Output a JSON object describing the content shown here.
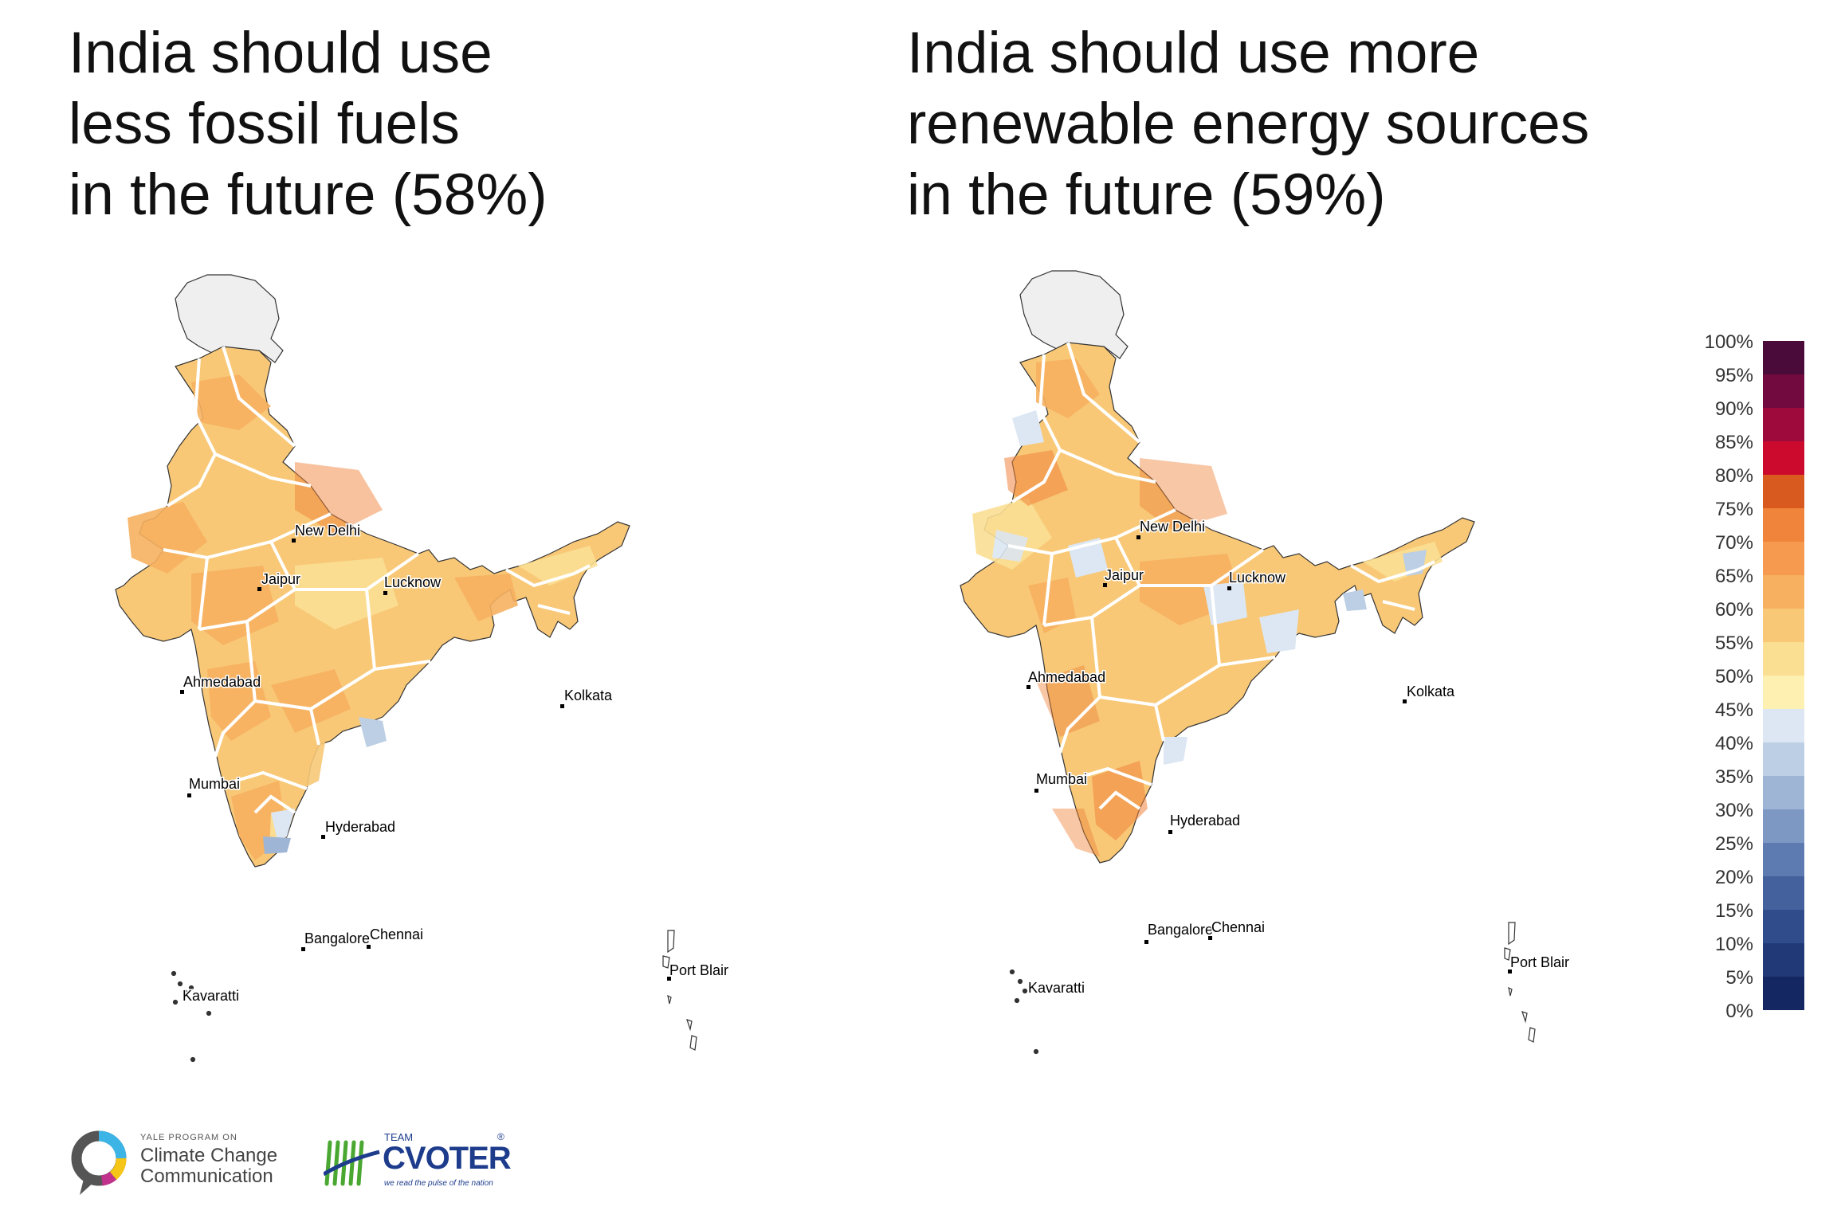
{
  "titles": {
    "left": [
      "India should use",
      "less fossil fuels",
      "in the future (58%)"
    ],
    "right": [
      "India should use more",
      "renewable energy sources",
      "in the future (59%)"
    ]
  },
  "maps": {
    "left": {
      "cities": {
        "new_delhi": "New Delhi",
        "jaipur": "Jaipur",
        "lucknow": "Lucknow",
        "ahmedabad": "Ahmedabad",
        "kolkata": "Kolkata",
        "mumbai": "Mumbai",
        "hyderabad": "Hyderabad",
        "bangalore": "Bangalore",
        "chennai": "Chennai",
        "kavaratti": "Kavaratti",
        "port_blair": "Port Blair"
      }
    },
    "right": {
      "cities": {
        "new_delhi": "New Delhi",
        "jaipur": "Jaipur",
        "lucknow": "Lucknow",
        "ahmedabad": "Ahmedabad",
        "kolkata": "Kolkata",
        "mumbai": "Mumbai",
        "hyderabad": "Hyderabad",
        "bangalore": "Bangalore",
        "chennai": "Chennai",
        "kavaratti": "Kavaratti",
        "port_blair": "Port Blair"
      }
    }
  },
  "legend": {
    "labels": [
      "100%",
      "95%",
      "90%",
      "85%",
      "80%",
      "75%",
      "70%",
      "65%",
      "60%",
      "55%",
      "50%",
      "45%",
      "40%",
      "35%",
      "30%",
      "25%",
      "20%",
      "15%",
      "10%",
      "5%",
      "0%"
    ],
    "colors": [
      "#4a0b3b",
      "#730a3f",
      "#9e0a3c",
      "#cc0a2e",
      "#d95a1e",
      "#f0843b",
      "#f59a4e",
      "#f6b060",
      "#f8c877",
      "#fadf93",
      "#fdf0b0",
      "#dce7f3",
      "#bccfe5",
      "#9eb5d6",
      "#7c98c3",
      "#5e7bb1",
      "#44619d",
      "#314c8a",
      "#213977",
      "#142763",
      "#0b1a4d"
    ]
  },
  "logos": {
    "yale": {
      "small": "YALE PROGRAM ON",
      "line1": "Climate Change",
      "line2": "Communication"
    },
    "cvoter": {
      "team": "TEAM",
      "name": "CVOTER",
      "reg": "®",
      "tagline": "we read the pulse of the nation"
    }
  },
  "colors": {
    "no_data": "#efefef",
    "outline": "#333333",
    "state_border": "#ffffff"
  }
}
